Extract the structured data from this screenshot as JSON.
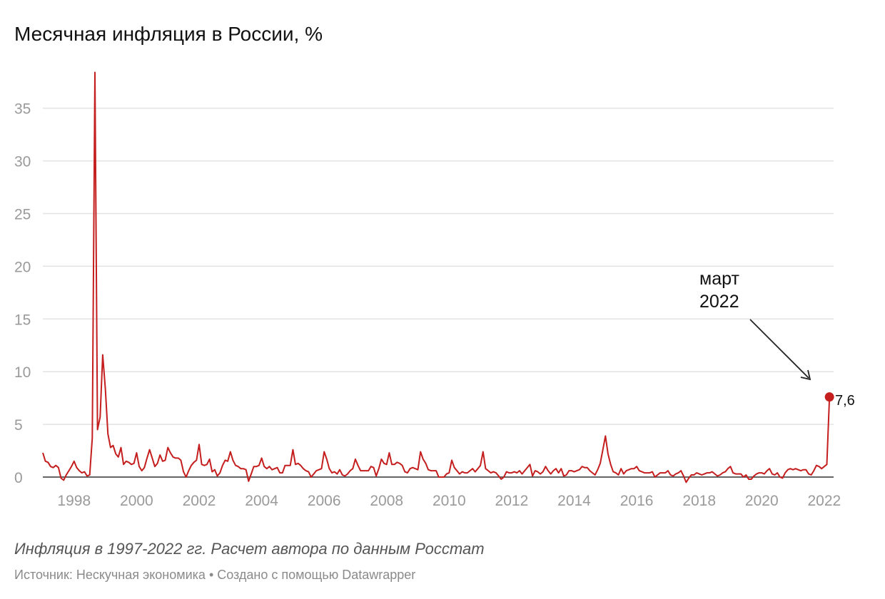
{
  "chart_data": {
    "type": "line",
    "title": "Месячная инфляция в России, %",
    "subtitle": "",
    "xlabel": "",
    "ylabel": "",
    "x_start": "1997-01",
    "x_end": "2022-03",
    "xlim": [
      1997,
      2022.3
    ],
    "ylim": [
      0,
      38.5
    ],
    "y_ticks": [
      "35",
      "30",
      "25",
      "20",
      "15",
      "10",
      "5",
      "0"
    ],
    "y_tick_values": [
      35,
      30,
      25,
      20,
      15,
      10,
      5,
      0
    ],
    "x_ticks": [
      "1998",
      "2000",
      "2002",
      "2004",
      "2006",
      "2008",
      "2010",
      "2012",
      "2014",
      "2016",
      "2018",
      "2020",
      "2022"
    ],
    "x_tick_values": [
      1998,
      2000,
      2002,
      2004,
      2006,
      2008,
      2010,
      2012,
      2014,
      2016,
      2018,
      2020,
      2022
    ],
    "grid": true,
    "series": [
      {
        "name": "Месячная инфляция",
        "color": "#c41e1e",
        "values": [
          2.3,
          1.5,
          1.4,
          1.0,
          0.9,
          1.1,
          0.9,
          -0.1,
          -0.3,
          0.2,
          0.6,
          1.0,
          1.5,
          0.9,
          0.6,
          0.4,
          0.5,
          0.1,
          0.2,
          3.7,
          38.4,
          4.5,
          5.7,
          11.6,
          8.4,
          4.1,
          2.8,
          3.0,
          2.2,
          1.9,
          2.8,
          1.2,
          1.5,
          1.4,
          1.2,
          1.3,
          2.3,
          1.0,
          0.6,
          0.9,
          1.8,
          2.6,
          1.8,
          1.0,
          1.3,
          2.1,
          1.5,
          1.6,
          2.8,
          2.3,
          1.9,
          1.8,
          1.8,
          1.6,
          0.5,
          0.0,
          0.6,
          1.1,
          1.4,
          1.6,
          3.1,
          1.2,
          1.1,
          1.2,
          1.7,
          0.5,
          0.7,
          0.1,
          0.4,
          1.1,
          1.6,
          1.5,
          2.4,
          1.6,
          1.1,
          1.0,
          0.8,
          0.8,
          0.7,
          -0.4,
          0.3,
          1.0,
          1.0,
          1.1,
          1.8,
          1.0,
          0.8,
          1.0,
          0.7,
          0.8,
          0.9,
          0.4,
          0.4,
          1.1,
          1.1,
          1.1,
          2.6,
          1.2,
          1.3,
          1.1,
          0.8,
          0.6,
          0.5,
          0.0,
          0.3,
          0.6,
          0.7,
          0.8,
          2.4,
          1.7,
          0.8,
          0.4,
          0.5,
          0.3,
          0.7,
          0.2,
          0.1,
          0.3,
          0.6,
          0.8,
          1.7,
          1.1,
          0.6,
          0.6,
          0.6,
          0.6,
          1.0,
          0.9,
          0.1,
          0.8,
          1.7,
          1.3,
          1.2,
          2.3,
          1.2,
          1.2,
          1.4,
          1.3,
          1.1,
          0.5,
          0.4,
          0.8,
          0.9,
          0.8,
          0.7,
          2.4,
          1.7,
          1.3,
          0.7,
          0.6,
          0.6,
          0.6,
          0.0,
          0.0,
          0.0,
          0.3,
          0.4,
          1.6,
          0.9,
          0.6,
          0.3,
          0.5,
          0.4,
          0.4,
          0.6,
          0.8,
          0.5,
          0.8,
          1.1,
          2.4,
          0.8,
          0.6,
          0.4,
          0.5,
          0.4,
          0.1,
          -0.2,
          0.0,
          0.5,
          0.4,
          0.4,
          0.5,
          0.4,
          0.6,
          0.3,
          0.6,
          0.9,
          1.2,
          0.1,
          0.6,
          0.5,
          0.3,
          0.5,
          1.0,
          0.6,
          0.3,
          0.6,
          0.8,
          0.4,
          0.8,
          0.1,
          0.2,
          0.6,
          0.6,
          0.5,
          0.6,
          0.7,
          1.0,
          0.9,
          0.9,
          0.6,
          0.4,
          0.2,
          0.7,
          1.3,
          2.6,
          3.9,
          2.2,
          1.2,
          0.5,
          0.4,
          0.2,
          0.8,
          0.3,
          0.6,
          0.7,
          0.8,
          0.8,
          1.0,
          0.6,
          0.5,
          0.4,
          0.4,
          0.4,
          0.5,
          0.0,
          0.2,
          0.4,
          0.4,
          0.4,
          0.6,
          0.2,
          0.1,
          0.3,
          0.4,
          0.6,
          0.1,
          -0.5,
          -0.1,
          0.2,
          0.2,
          0.4,
          0.3,
          0.2,
          0.3,
          0.4,
          0.4,
          0.5,
          0.3,
          0.1,
          0.2,
          0.4,
          0.5,
          0.8,
          1.0,
          0.4,
          0.3,
          0.3,
          0.3,
          0.0,
          0.2,
          -0.2,
          -0.2,
          0.1,
          0.3,
          0.4,
          0.4,
          0.3,
          0.6,
          0.8,
          0.3,
          0.2,
          0.4,
          0.0,
          -0.1,
          0.4,
          0.7,
          0.8,
          0.7,
          0.8,
          0.7,
          0.6,
          0.7,
          0.7,
          0.3,
          0.2,
          0.6,
          1.1,
          1.0,
          0.8,
          1.0,
          1.2,
          7.6
        ]
      }
    ],
    "annotations": [
      {
        "text_line1": "март",
        "text_line2": "2022",
        "target": "2022-03",
        "value": 7.6,
        "label": "7,6"
      }
    ]
  },
  "note": "Инфляция в 1997-2022 гг. Расчет автора по данным Росстат",
  "source": "Источник: Нескучная экономика • Создано с помощью Datawrapper",
  "colors": {
    "line": "#c41e1e",
    "grid": "#e3e3e3",
    "axis": "#333333",
    "tick_text": "#9a9a9a"
  }
}
